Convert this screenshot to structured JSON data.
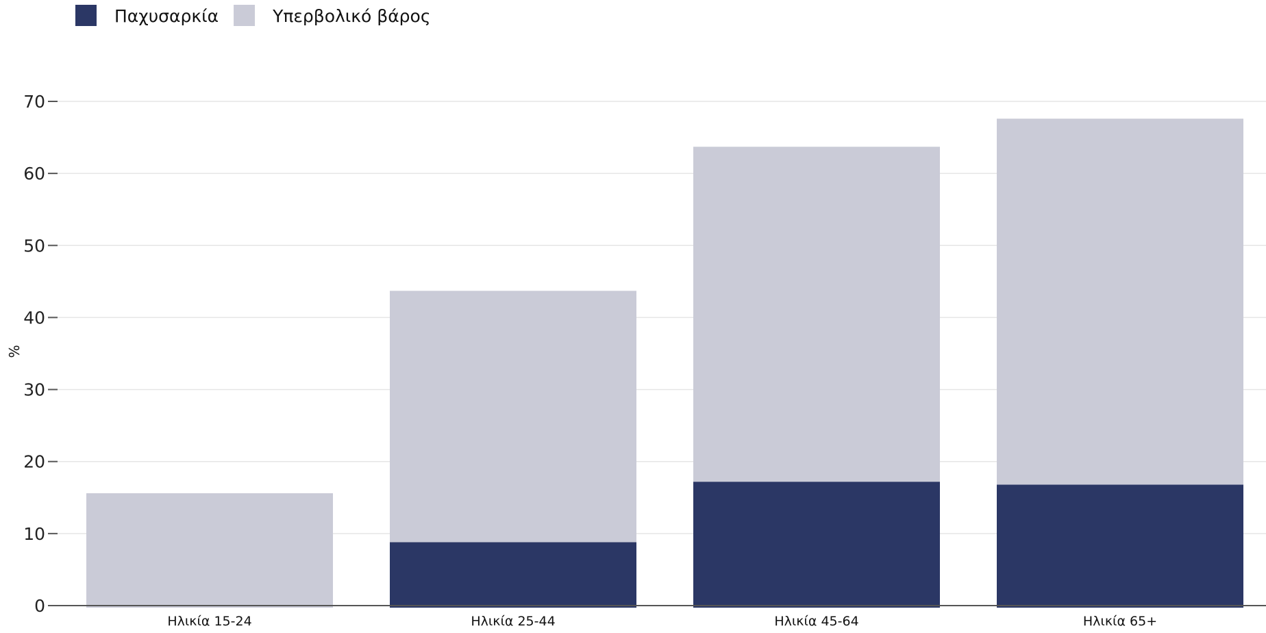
{
  "chart_data": {
    "type": "bar",
    "stacked": true,
    "categories": [
      "Ηλικία 15-24",
      "Ηλικία 25-44",
      "Ηλικία 45-64",
      "Ηλικία 65+"
    ],
    "series": [
      {
        "name": "Παχυσαρκία",
        "values": [
          0,
          8.8,
          17.2,
          16.8
        ],
        "color": "#2b3765"
      },
      {
        "name": "Υπερβολικό βάρος",
        "values": [
          15.6,
          34.9,
          46.5,
          50.8
        ],
        "color": "#cacbd7"
      }
    ],
    "title": "",
    "xlabel": "",
    "ylabel": "%",
    "ylim": [
      0,
      70
    ],
    "yticks": [
      0,
      10,
      20,
      30,
      40,
      50,
      60,
      70
    ],
    "grid": true,
    "legend_position": "top-left"
  }
}
